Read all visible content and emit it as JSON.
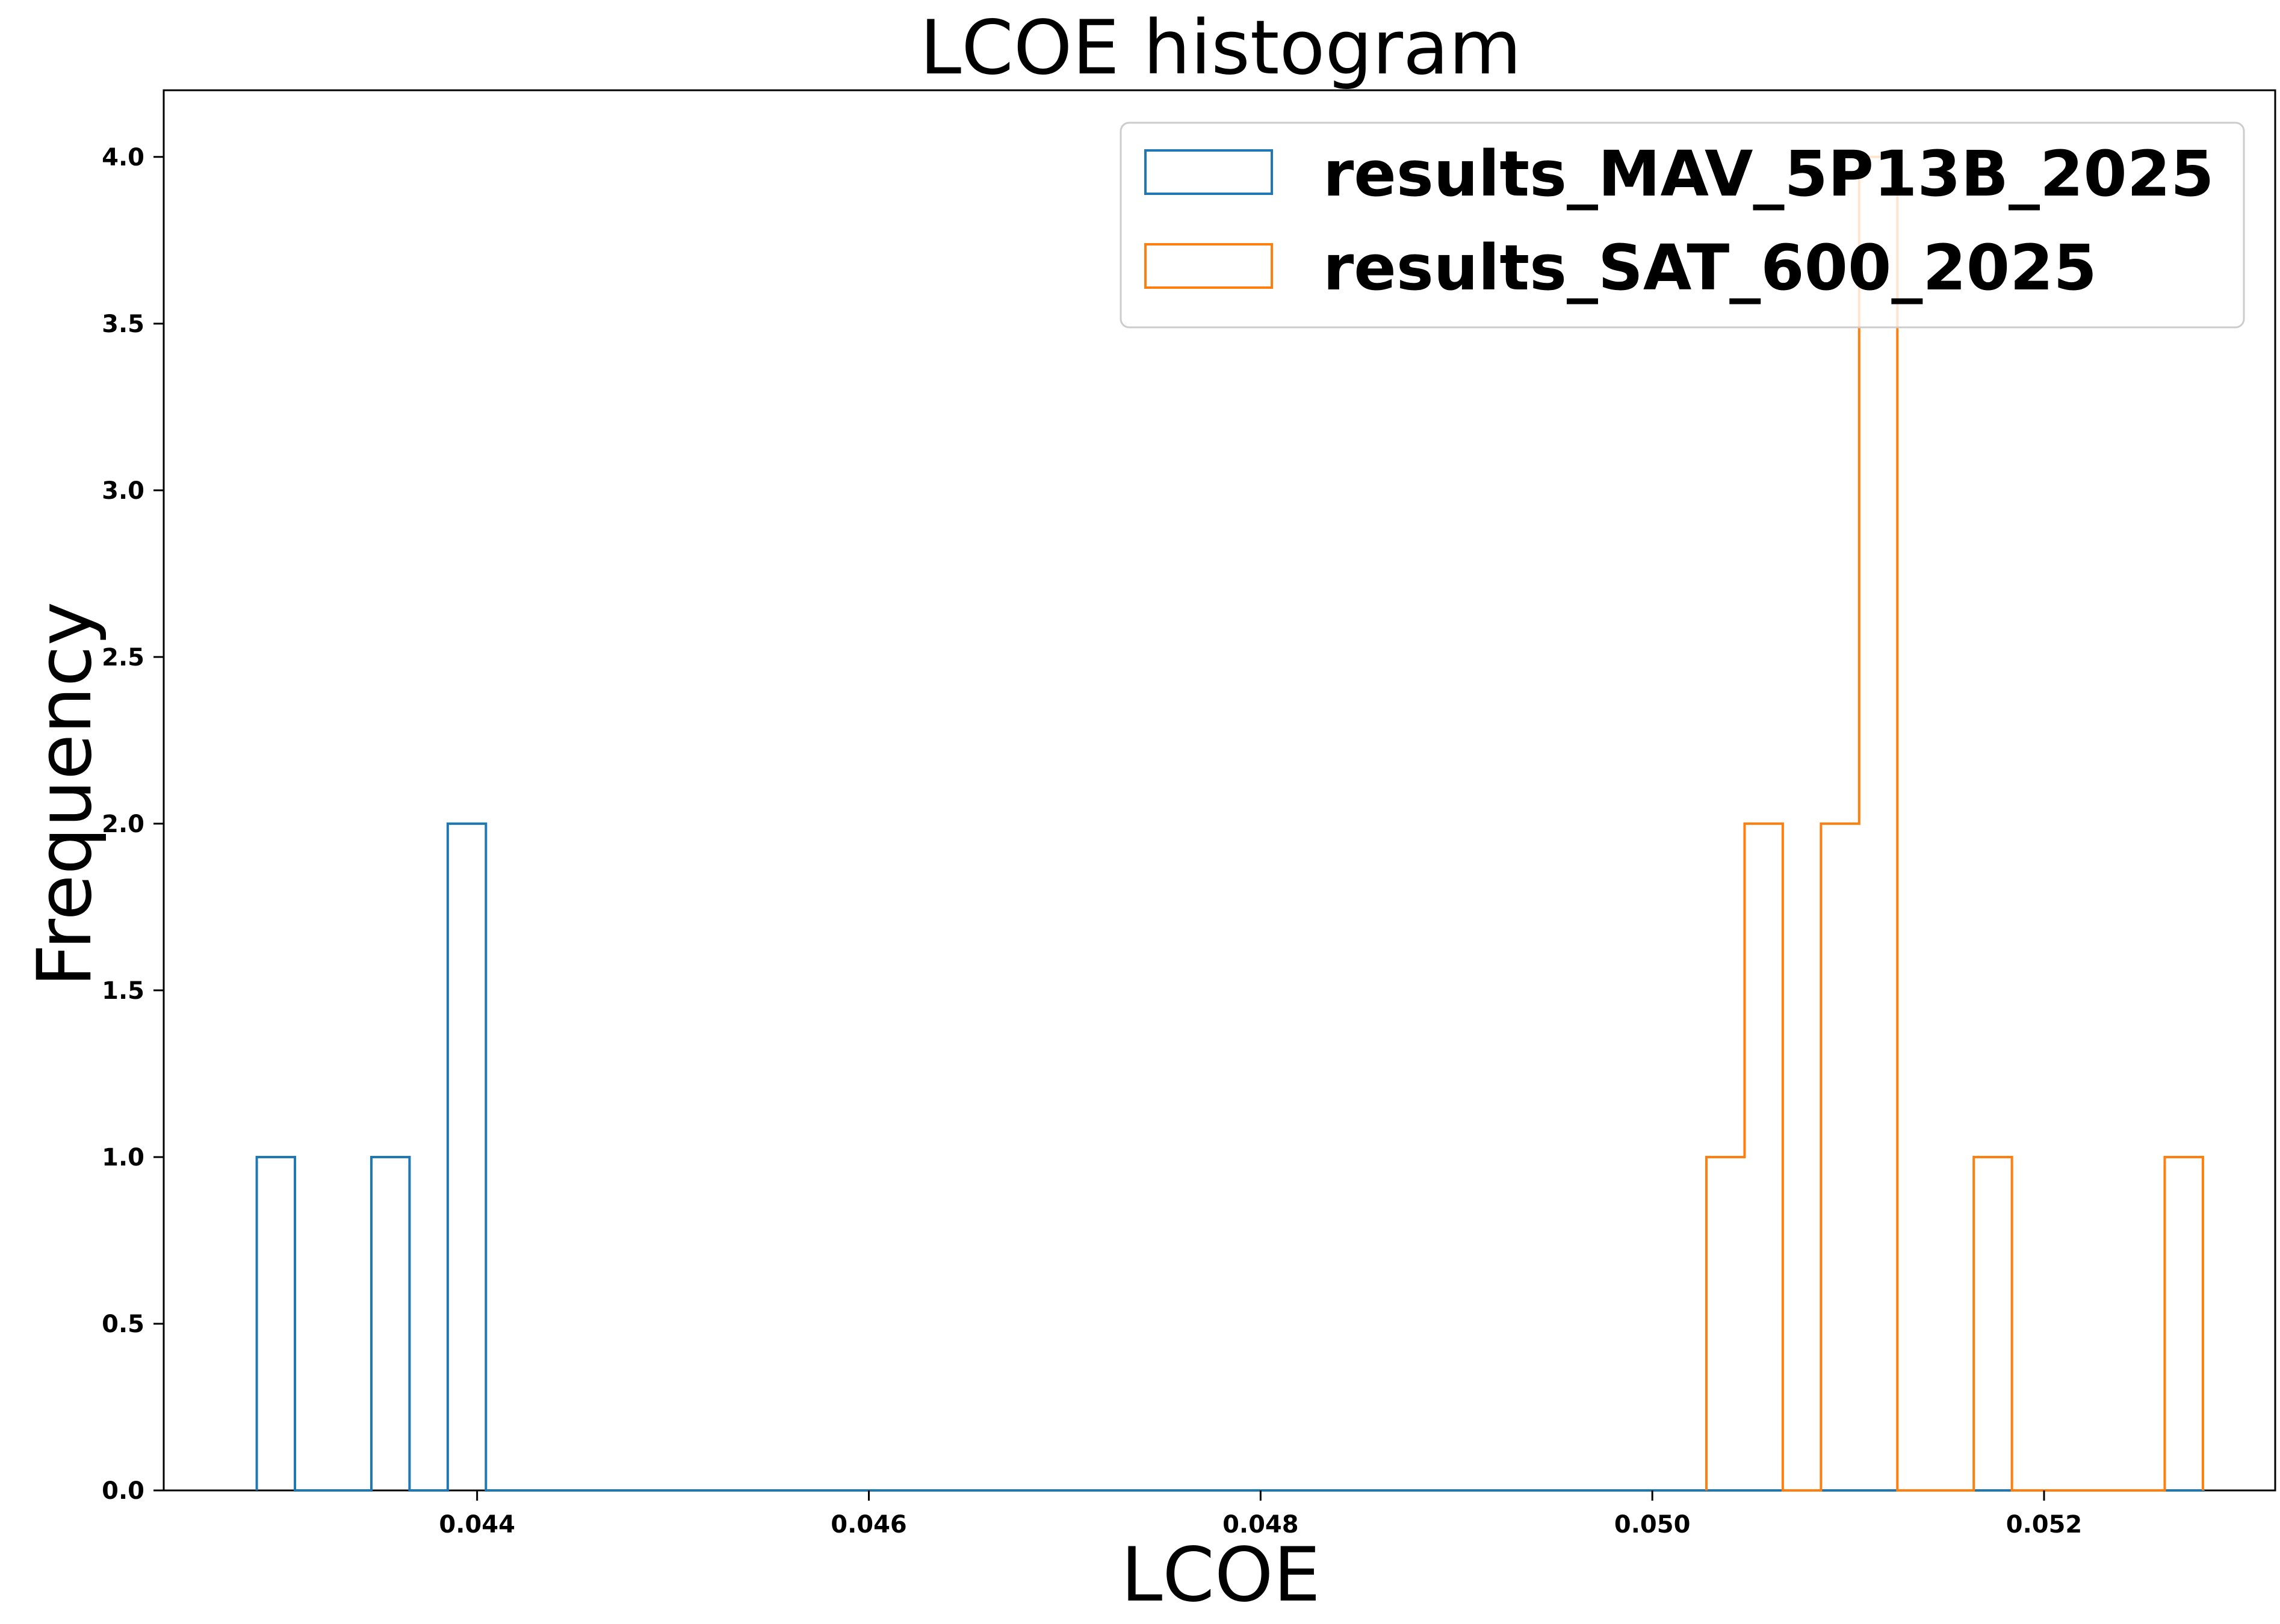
{
  "chart_data": {
    "type": "bar",
    "subtype": "histogram-step",
    "title": "LCOE histogram",
    "xlabel": "LCOE",
    "ylabel": "Frequency",
    "xlim": [
      0.0424,
      0.05318
    ],
    "ylim": [
      0.0,
      4.2
    ],
    "xticks": [
      0.044,
      0.046,
      0.048,
      0.05,
      0.052
    ],
    "xtick_labels": [
      "0.044",
      "0.046",
      "0.048",
      "0.050",
      "0.052"
    ],
    "yticks": [
      0.0,
      0.5,
      1.0,
      1.5,
      2.0,
      2.5,
      3.0,
      3.5,
      4.0
    ],
    "ytick_labels": [
      "0.0",
      "0.5",
      "1.0",
      "1.5",
      "2.0",
      "2.5",
      "3.0",
      "3.5",
      "4.0"
    ],
    "grid": false,
    "legend_position": "top-right",
    "series": [
      {
        "name": "results_MAV_5P13B_2025",
        "color": "#1f77b4",
        "bin_start": 0.042875,
        "bin_width": 0.000195,
        "counts": [
          1,
          0,
          0,
          1,
          0,
          2,
          0,
          0,
          0,
          0,
          0,
          0,
          0,
          0,
          0,
          0,
          0,
          0,
          0,
          0,
          0,
          0,
          0,
          0,
          0,
          0,
          0,
          0,
          0,
          0,
          0,
          0,
          0,
          0,
          0,
          0,
          0,
          0,
          0,
          0,
          0,
          0,
          0,
          0,
          0,
          0,
          0,
          0,
          0,
          0,
          0
        ]
      },
      {
        "name": "results_SAT_600_2025",
        "color": "#ff7f0e",
        "bin_start": 0.050276,
        "bin_width": 0.000195,
        "counts": [
          1,
          2,
          0,
          2,
          4,
          0,
          0,
          1,
          0,
          0,
          0,
          0,
          1
        ]
      }
    ]
  }
}
